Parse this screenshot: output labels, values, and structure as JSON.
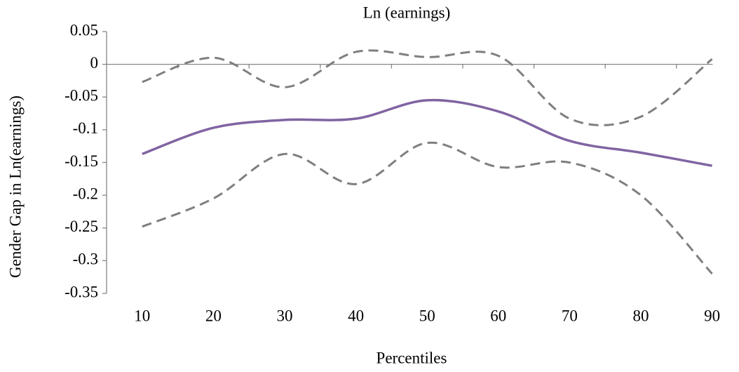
{
  "chart_data": {
    "type": "line",
    "title": "Ln (earnings)",
    "x_label": "Percentiles",
    "y_label": "Gender Gap in Ln(earnings)",
    "categories": [
      10,
      20,
      30,
      40,
      50,
      60,
      70,
      80,
      90
    ],
    "series": [
      {
        "color": "#8064a2",
        "line_style": "solid",
        "values": [
          -0.137,
          -0.097,
          -0.085,
          -0.083,
          -0.055,
          -0.072,
          -0.117,
          -0.135,
          -0.155
        ]
      },
      {
        "color": "#7f7f7f",
        "line_style": "dashed",
        "values": [
          -0.027,
          0.01,
          -0.035,
          0.019,
          0.011,
          0.013,
          -0.083,
          -0.08,
          0.008
        ]
      },
      {
        "color": "#7f7f7f",
        "line_style": "dashed",
        "values": [
          -0.248,
          -0.205,
          -0.137,
          -0.183,
          -0.12,
          -0.157,
          -0.15,
          -0.2,
          -0.32
        ]
      }
    ],
    "ylim": [
      -0.35,
      0.05
    ],
    "yticks": [
      0.05,
      0,
      -0.05,
      -0.1,
      -0.15,
      -0.2,
      -0.25,
      -0.3,
      -0.35
    ],
    "grid": false
  }
}
